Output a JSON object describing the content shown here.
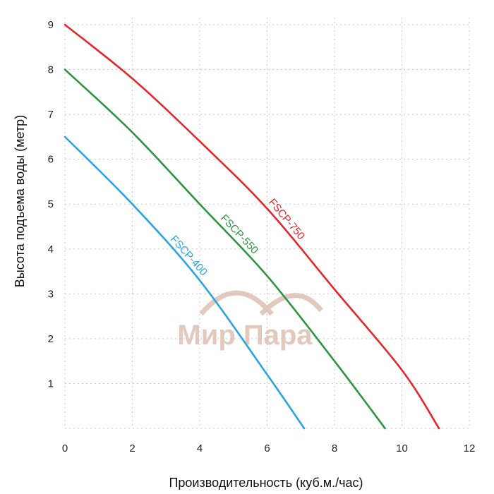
{
  "chart_data": {
    "type": "line",
    "xlabel": "Производительность (куб.м./час)",
    "ylabel": "Высота подъема воды (метр)",
    "xlim": [
      0,
      12
    ],
    "ylim": [
      0,
      9
    ],
    "x_ticks": [
      "0",
      "2",
      "4",
      "6",
      "8",
      "10",
      "12"
    ],
    "y_ticks": [
      "1",
      "2",
      "3",
      "4",
      "5",
      "6",
      "7",
      "8",
      "9"
    ],
    "grid": "dotted",
    "series": [
      {
        "name": "FSCP-750",
        "color": "#e5262b",
        "x": [
          0,
          2,
          4,
          6,
          8,
          10,
          11.1
        ],
        "y": [
          9.0,
          7.8,
          6.4,
          4.9,
          3.1,
          1.3,
          0
        ]
      },
      {
        "name": "FSCP-550",
        "color": "#2e9442",
        "x": [
          0,
          2,
          4,
          6,
          8,
          9.5
        ],
        "y": [
          8.0,
          6.6,
          5.0,
          3.4,
          1.5,
          0
        ]
      },
      {
        "name": "FSCP-400",
        "color": "#2aa4e2",
        "x": [
          0,
          2,
          4,
          6,
          7.1
        ],
        "y": [
          6.5,
          5.0,
          3.3,
          1.2,
          0
        ]
      }
    ]
  },
  "watermark": {
    "text": "Мир Пара",
    "color": "#d9b6a7"
  }
}
